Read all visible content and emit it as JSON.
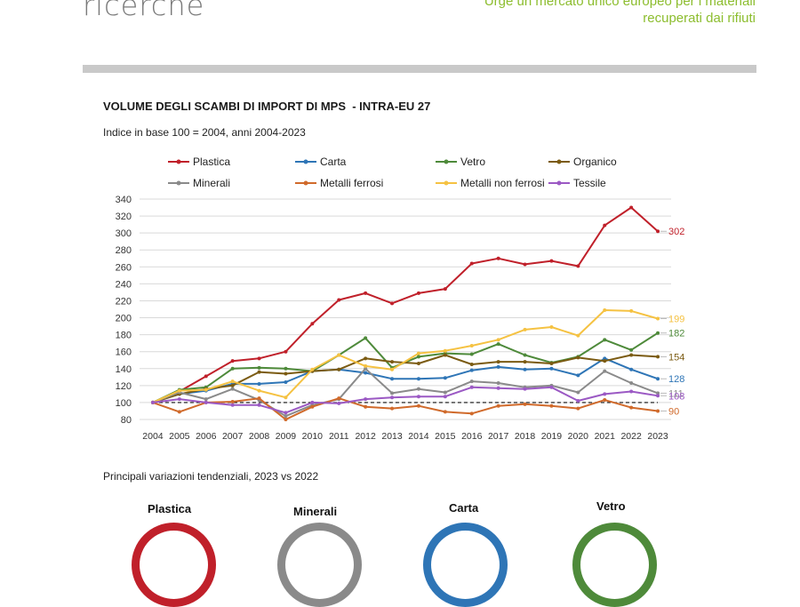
{
  "header": {
    "brand": "ricerche",
    "tagline": [
      "Urge un mercato unico europeo per i materiali",
      "recuperati dai rifiuti"
    ]
  },
  "chart_data": {
    "type": "line",
    "title": "VOLUME DEGLI SCAMBI DI IMPORT DI MPS  - INTRA-EU 27",
    "subtitle": "Indice in base 100 = 2004, anni 2004-2023",
    "x": [
      "2004",
      "2005",
      "2006",
      "2007",
      "2008",
      "2009",
      "2010",
      "2011",
      "2012",
      "2013",
      "2014",
      "2015",
      "2016",
      "2017",
      "2018",
      "2019",
      "2020",
      "2021",
      "2022",
      "2023"
    ],
    "ylim": [
      80,
      340
    ],
    "yticks": [
      80,
      100,
      120,
      140,
      160,
      180,
      200,
      220,
      240,
      260,
      280,
      300,
      320,
      340
    ],
    "grid": "horizontal",
    "legend": "top",
    "reference_line": 100,
    "series": [
      {
        "name": "Plastica",
        "color": "#c0202a",
        "end_label": "302",
        "values": [
          100,
          113,
          131,
          149,
          152,
          160,
          193,
          221,
          229,
          217,
          229,
          234,
          264,
          270,
          263,
          267,
          261,
          309,
          330,
          302
        ]
      },
      {
        "name": "Carta",
        "color": "#2e75b6",
        "end_label": "128",
        "values": [
          100,
          110,
          114,
          122,
          122,
          124,
          137,
          139,
          135,
          128,
          128,
          129,
          138,
          142,
          139,
          140,
          132,
          152,
          139,
          128
        ]
      },
      {
        "name": "Vetro",
        "color": "#4e8a3a",
        "end_label": "182",
        "values": [
          100,
          115,
          118,
          140,
          141,
          140,
          137,
          156,
          176,
          141,
          154,
          158,
          157,
          169,
          156,
          147,
          154,
          174,
          162,
          182
        ]
      },
      {
        "name": "Organico",
        "color": "#7b5b12",
        "end_label": "154",
        "values": [
          100,
          110,
          116,
          120,
          136,
          134,
          137,
          139,
          152,
          148,
          146,
          156,
          145,
          148,
          148,
          146,
          153,
          149,
          156,
          154
        ]
      },
      {
        "name": "Minerali",
        "color": "#8a8a8a",
        "end_label": "111",
        "values": [
          100,
          112,
          104,
          116,
          103,
          84,
          97,
          104,
          140,
          111,
          116,
          112,
          125,
          123,
          118,
          120,
          112,
          137,
          123,
          111
        ]
      },
      {
        "name": "Metalli ferrosi",
        "color": "#d06a2b",
        "end_label": "90",
        "values": [
          100,
          89,
          100,
          101,
          105,
          80,
          95,
          105,
          95,
          93,
          96,
          89,
          87,
          96,
          98,
          96,
          93,
          103,
          94,
          90
        ]
      },
      {
        "name": "Metalli non ferrosi",
        "color": "#f5c242",
        "end_label": "199",
        "values": [
          100,
          114,
          115,
          125,
          114,
          106,
          139,
          156,
          143,
          139,
          158,
          161,
          167,
          174,
          186,
          189,
          179,
          209,
          208,
          199
        ]
      },
      {
        "name": "Tessile",
        "color": "#9b59c4",
        "end_label": "108",
        "values": [
          100,
          104,
          100,
          97,
          97,
          88,
          100,
          99,
          104,
          106,
          107,
          107,
          118,
          117,
          116,
          118,
          102,
          110,
          113,
          108
        ]
      }
    ]
  },
  "section": {
    "caption": "Principali variazioni tendenziali, 2023 vs 2022",
    "items": [
      {
        "label": "Plastica",
        "color": "#c0202a"
      },
      {
        "label": "Minerali",
        "color": "#8a8a8a"
      },
      {
        "label": "Carta",
        "color": "#2e75b6"
      },
      {
        "label": "Vetro",
        "color": "#4e8a3a"
      }
    ]
  }
}
